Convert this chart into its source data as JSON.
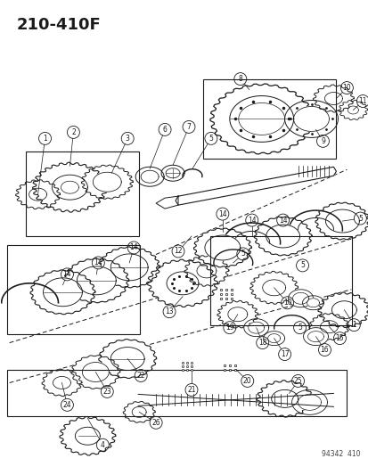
{
  "title": "210-410F",
  "subtitle": "94342  410",
  "bg_color": "#ffffff",
  "line_color": "#1a1a1a",
  "fig_width": 4.14,
  "fig_height": 5.33,
  "dpi": 100
}
